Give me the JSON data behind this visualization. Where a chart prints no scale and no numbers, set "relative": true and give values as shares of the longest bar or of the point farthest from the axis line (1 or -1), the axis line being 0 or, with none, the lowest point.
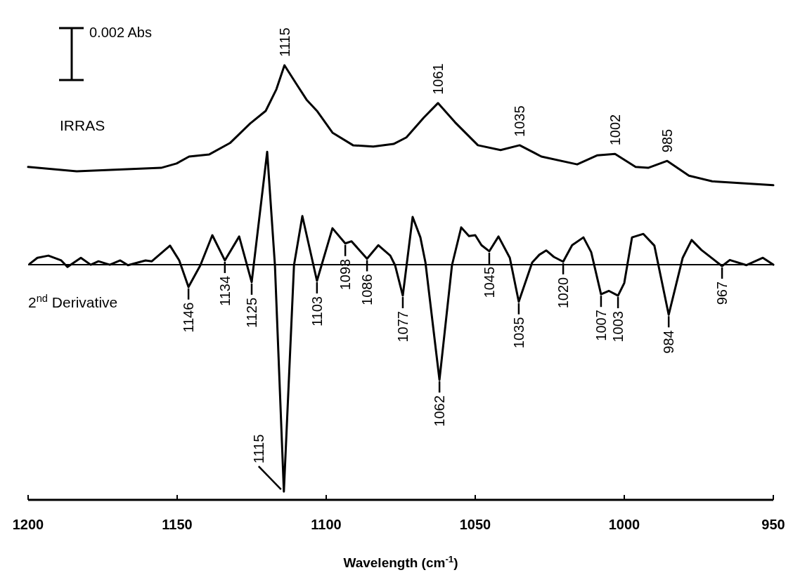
{
  "chart_data": {
    "type": "line",
    "relative": true,
    "xlabel": "Wavelength (cm$^{-1}$)",
    "xlim": [
      1200,
      950
    ],
    "xticks": [
      1200,
      1150,
      1100,
      1050,
      1000,
      950
    ],
    "series": [
      {
        "name": "IRRAS",
        "color": "#000000",
        "x": [
          1200,
          1183.7,
          1155.4,
          1150.2,
          1146,
          1139.2,
          1132.3,
          1125.5,
          1120.3,
          1116.7,
          1114,
          1109.9,
          1106.6,
          1103.1,
          1097.9,
          1091,
          1084.2,
          1077.4,
          1073.1,
          1067.2,
          1062.5,
          1056.8,
          1049.1,
          1041.5,
          1035.1,
          1027.8,
          1015.8,
          1009,
          1003.1,
          996.2,
          992,
          985.6,
          978.3,
          970.5,
          950
        ],
        "values": [
          0.766,
          0.756,
          0.764,
          0.774,
          0.79,
          0.795,
          0.821,
          0.866,
          0.895,
          0.945,
          1,
          0.956,
          0.921,
          0.895,
          0.845,
          0.816,
          0.813,
          0.819,
          0.834,
          0.88,
          0.913,
          0.869,
          0.816,
          0.805,
          0.816,
          0.79,
          0.772,
          0.793,
          0.796,
          0.766,
          0.764,
          0.78,
          0.746,
          0.733,
          0.724
        ]
      },
      {
        "name": "2$^{nd}$ Derivative",
        "color": "#000000",
        "x": [
          1199.5,
          1196.9,
          1193.2,
          1188.9,
          1186.8,
          1182.3,
          1179,
          1176.4,
          1172.6,
          1169.1,
          1166.5,
          1160.6,
          1158.5,
          1152.4,
          1149.3,
          1146.2,
          1142.2,
          1138.2,
          1134,
          1129.2,
          1125,
          1119.8,
          1117.2,
          1114.2,
          1110.8,
          1108,
          1103.1,
          1097.9,
          1093.6,
          1091.5,
          1086.3,
          1082.5,
          1078.5,
          1076.9,
          1074.3,
          1071,
          1068.4,
          1066.7,
          1062,
          1057.8,
          1054.7,
          1052.1,
          1050,
          1047.9,
          1045.3,
          1042.2,
          1038.4,
          1035.4,
          1030.9,
          1028.5,
          1026.2,
          1023.6,
          1020.5,
          1017.5,
          1013.7,
          1011.1,
          1007.8,
          1005.2,
          1002.1,
          1000,
          997.4,
          993.6,
          989.9,
          985.1,
          980.4,
          977.4,
          974.1,
          967.2,
          964.6,
          959,
          953.5,
          950
        ],
        "values": [
          0.543,
          0.557,
          0.562,
          0.551,
          0.536,
          0.557,
          0.541,
          0.549,
          0.541,
          0.551,
          0.54,
          0.551,
          0.549,
          0.585,
          0.551,
          0.49,
          0.54,
          0.609,
          0.551,
          0.606,
          0.501,
          0.801,
          0.54,
          0.019,
          0.54,
          0.653,
          0.504,
          0.625,
          0.59,
          0.595,
          0.555,
          0.586,
          0.562,
          0.54,
          0.47,
          0.651,
          0.604,
          0.546,
          0.276,
          0.54,
          0.627,
          0.607,
          0.609,
          0.586,
          0.572,
          0.606,
          0.557,
          0.456,
          0.546,
          0.564,
          0.574,
          0.559,
          0.548,
          0.586,
          0.604,
          0.57,
          0.473,
          0.481,
          0.47,
          0.499,
          0.604,
          0.612,
          0.585,
          0.426,
          0.557,
          0.598,
          0.575,
          0.538,
          0.552,
          0.54,
          0.557,
          0.541
        ]
      }
    ],
    "ref_lines": [
      {
        "axis": "y",
        "value": 0.541,
        "color": "#000000"
      }
    ],
    "annotations": [
      "0.002 Abs",
      {
        "text": "1115",
        "x": 1114,
        "y": 1
      },
      {
        "text": "1061",
        "x": 1062.5,
        "y": 0.913
      },
      {
        "text": "1035",
        "x": 1035.1,
        "y": 0.816
      },
      {
        "text": "1002",
        "x": 1003.1,
        "y": 0.796
      },
      {
        "text": "985",
        "x": 985.6,
        "y": 0.78
      },
      {
        "text": "1146",
        "x": 1146.2,
        "y": 0.49
      },
      {
        "text": "1134",
        "x": 1134,
        "y": 0.551
      },
      {
        "text": "1125",
        "x": 1125,
        "y": 0.501
      },
      {
        "text": "1115",
        "x": 1114.2,
        "y": 0.019
      },
      {
        "text": "1103",
        "x": 1103.1,
        "y": 0.504
      },
      {
        "text": "1093",
        "x": 1093.6,
        "y": 0.59
      },
      {
        "text": "1086",
        "x": 1086.3,
        "y": 0.555
      },
      {
        "text": "1077",
        "x": 1074.3,
        "y": 0.47
      },
      {
        "text": "1062",
        "x": 1062,
        "y": 0.276
      },
      {
        "text": "1045",
        "x": 1045.3,
        "y": 0.572
      },
      {
        "text": "1035",
        "x": 1035.4,
        "y": 0.456
      },
      {
        "text": "1020",
        "x": 1020.5,
        "y": 0.548
      },
      {
        "text": "1007",
        "x": 1007.8,
        "y": 0.473
      },
      {
        "text": "1003",
        "x": 1002.1,
        "y": 0.47
      },
      {
        "text": "984",
        "x": 985.1,
        "y": 0.426
      },
      {
        "text": "967",
        "x": 967.2,
        "y": 0.538
      }
    ]
  }
}
